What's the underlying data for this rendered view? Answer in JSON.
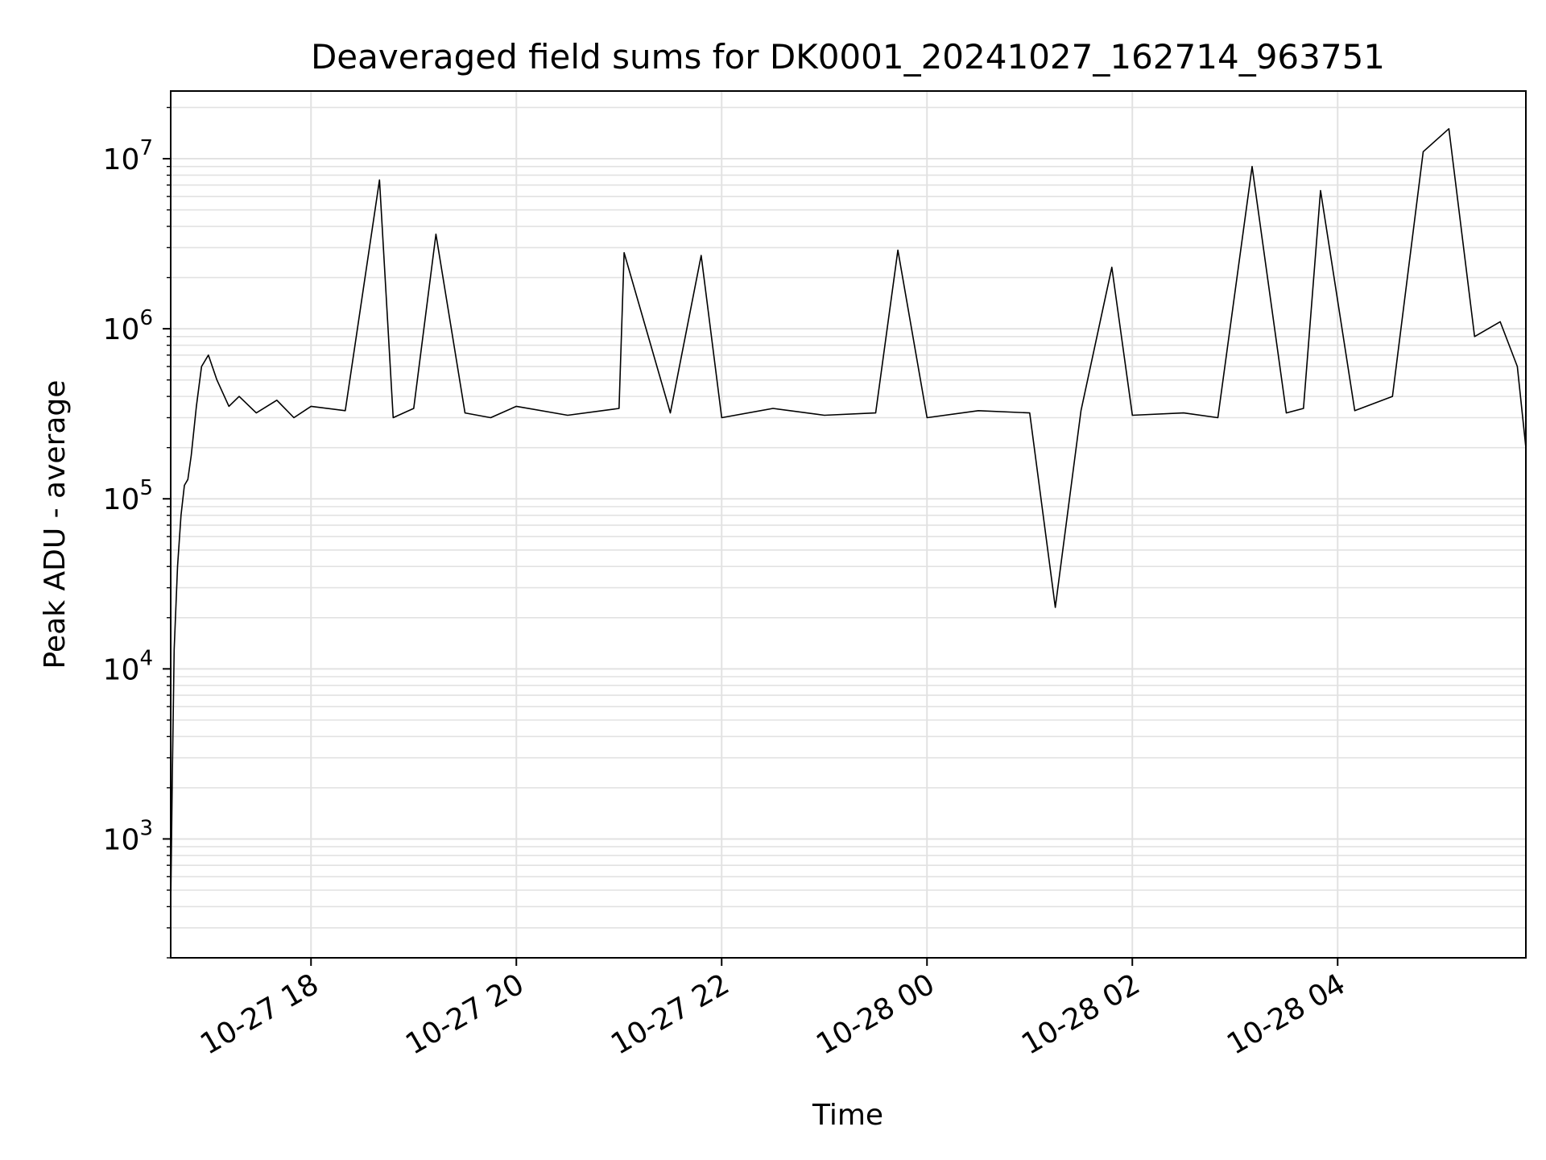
{
  "chart_data": {
    "type": "line",
    "title": "Deaveraged field sums for DK0001_20241027_162714_963751",
    "xlabel": "Time",
    "ylabel": "Peak ADU - average",
    "yscale": "log",
    "xlim": [
      "2024-10-27 16:38",
      "2024-10-28 05:50"
    ],
    "ylim": [
      200,
      25000000
    ],
    "grid": true,
    "x_ticks": [
      {
        "label": "10-27 18",
        "t": "2024-10-27 18:00"
      },
      {
        "label": "10-27 20",
        "t": "2024-10-27 20:00"
      },
      {
        "label": "10-27 22",
        "t": "2024-10-27 22:00"
      },
      {
        "label": "10-28 00",
        "t": "2024-10-28 00:00"
      },
      {
        "label": "10-28 02",
        "t": "2024-10-28 02:00"
      },
      {
        "label": "10-28 04",
        "t": "2024-10-28 04:00"
      }
    ],
    "y_ticks": [
      {
        "base": "10",
        "exp": "3",
        "value": 1000
      },
      {
        "base": "10",
        "exp": "4",
        "value": 10000
      },
      {
        "base": "10",
        "exp": "5",
        "value": 100000
      },
      {
        "base": "10",
        "exp": "6",
        "value": 1000000
      },
      {
        "base": "10",
        "exp": "7",
        "value": 10000000
      }
    ],
    "line_color": "#000000",
    "series": [
      {
        "x": [
          "2024-10-27 16:38",
          "2024-10-27 16:39",
          "2024-10-27 16:40",
          "2024-10-27 16:42",
          "2024-10-27 16:44",
          "2024-10-27 16:46",
          "2024-10-27 16:48",
          "2024-10-27 16:50",
          "2024-10-27 16:53",
          "2024-10-27 16:56",
          "2024-10-27 17:00",
          "2024-10-27 17:05",
          "2024-10-27 17:12",
          "2024-10-27 17:18",
          "2024-10-27 17:28",
          "2024-10-27 17:40",
          "2024-10-27 17:50",
          "2024-10-27 18:00",
          "2024-10-27 18:20",
          "2024-10-27 18:40",
          "2024-10-27 18:48",
          "2024-10-27 19:00",
          "2024-10-27 19:13",
          "2024-10-27 19:30",
          "2024-10-27 19:45",
          "2024-10-27 20:00",
          "2024-10-27 20:30",
          "2024-10-27 21:00",
          "2024-10-27 21:03",
          "2024-10-27 21:30",
          "2024-10-27 21:48",
          "2024-10-27 22:00",
          "2024-10-27 22:30",
          "2024-10-27 23:00",
          "2024-10-27 23:30",
          "2024-10-27 23:43",
          "2024-10-28 00:00",
          "2024-10-28 00:30",
          "2024-10-28 01:00",
          "2024-10-28 01:15",
          "2024-10-28 01:30",
          "2024-10-28 01:48",
          "2024-10-28 02:00",
          "2024-10-28 02:30",
          "2024-10-28 02:50",
          "2024-10-28 03:10",
          "2024-10-28 03:30",
          "2024-10-28 03:40",
          "2024-10-28 03:50",
          "2024-10-28 04:10",
          "2024-10-28 04:32",
          "2024-10-28 04:50",
          "2024-10-28 05:05",
          "2024-10-28 05:20",
          "2024-10-28 05:35",
          "2024-10-28 05:45",
          "2024-10-28 05:50"
        ],
        "y": [
          400,
          2500,
          13000,
          40000,
          80000,
          120000,
          130000,
          180000,
          350000,
          600000,
          700000,
          500000,
          350000,
          400000,
          320000,
          380000,
          300000,
          350000,
          330000,
          7500000,
          300000,
          340000,
          3600000,
          320000,
          300000,
          350000,
          310000,
          340000,
          2800000,
          320000,
          2700000,
          300000,
          340000,
          310000,
          320000,
          2900000,
          300000,
          330000,
          320000,
          23000,
          330000,
          2300000,
          310000,
          320000,
          300000,
          9000000,
          320000,
          340000,
          6500000,
          330000,
          400000,
          11000000,
          15000000,
          900000,
          1100000,
          600000,
          200000
        ]
      }
    ]
  }
}
